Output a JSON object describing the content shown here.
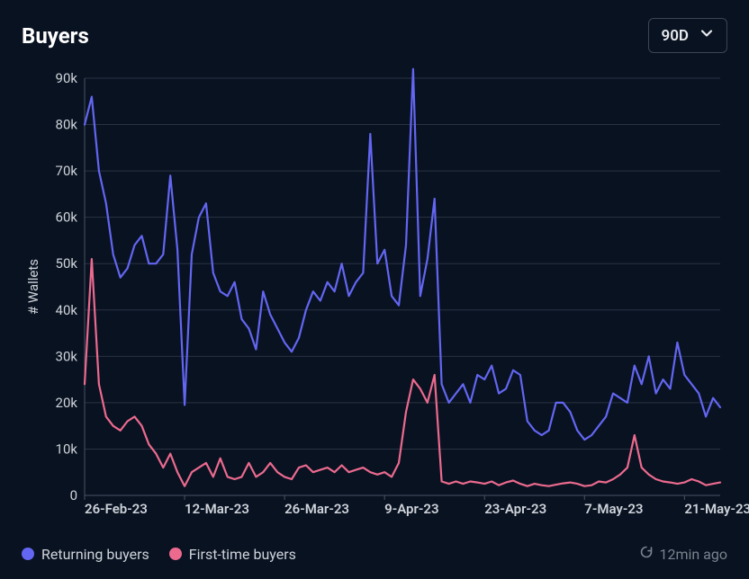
{
  "title": "Buyers",
  "range_selector": {
    "value": "90D"
  },
  "updated_label": "12min ago",
  "legend": {
    "returning": {
      "label": "Returning buyers",
      "color": "#6366f1"
    },
    "firsttime": {
      "label": "First-time buyers",
      "color": "#ec6a8e"
    }
  },
  "chart": {
    "type": "line",
    "background_color": "#081221",
    "grid_color": "#2a3342",
    "axis_color": "#4a5362",
    "text_color": "#cfd3da",
    "label_fontsize": 15,
    "tick_fontsize": 15,
    "ylabel": "# Wallets",
    "ylim": [
      0,
      90000
    ],
    "ytick_step": 10000,
    "yticks": [
      0,
      10000,
      20000,
      30000,
      40000,
      50000,
      60000,
      70000,
      80000,
      90000
    ],
    "ytick_labels": [
      "0",
      "10k",
      "20k",
      "30k",
      "40k",
      "50k",
      "60k",
      "70k",
      "80k",
      "90k"
    ],
    "x_count": 90,
    "xtick_indices": [
      0,
      14,
      28,
      42,
      56,
      70,
      84
    ],
    "xtick_labels": [
      "26-Feb-23",
      "12-Mar-23",
      "26-Mar-23",
      "9-Apr-23",
      "23-Apr-23",
      "7-May-23",
      "21-May-23"
    ],
    "line_width": 2.2,
    "series": {
      "returning": {
        "color": "#6366f1",
        "values": [
          80000,
          86000,
          70000,
          63000,
          52000,
          47000,
          49000,
          54000,
          56000,
          50000,
          50000,
          52000,
          69000,
          53000,
          19500,
          52000,
          60000,
          63000,
          48000,
          44000,
          43000,
          46000,
          38000,
          36000,
          31500,
          44000,
          39000,
          36000,
          33000,
          31000,
          34000,
          40000,
          44000,
          42000,
          46000,
          44000,
          50000,
          43000,
          46000,
          48000,
          78000,
          50000,
          53000,
          43000,
          41000,
          54000,
          92000,
          43000,
          51000,
          64000,
          24000,
          20000,
          22000,
          24000,
          20000,
          26000,
          25000,
          28000,
          22000,
          23000,
          27000,
          26000,
          16000,
          14000,
          13000,
          14000,
          20000,
          20000,
          18000,
          14000,
          12000,
          13000,
          15000,
          17000,
          22000,
          21000,
          20000,
          28000,
          24000,
          30000,
          22000,
          25000,
          23000,
          33000,
          26000,
          24000,
          22000,
          17000,
          21000,
          19000
        ]
      },
      "firsttime": {
        "color": "#ec6a8e",
        "values": [
          24000,
          51000,
          24000,
          17000,
          15000,
          14000,
          16000,
          17000,
          15000,
          11000,
          9000,
          6000,
          9000,
          5000,
          2000,
          5000,
          6000,
          7000,
          4000,
          8000,
          4000,
          3500,
          4000,
          7000,
          4000,
          5000,
          7000,
          5000,
          4000,
          3500,
          6000,
          6500,
          5000,
          5500,
          6000,
          5000,
          6500,
          5000,
          5500,
          6000,
          5000,
          4500,
          5000,
          4000,
          7000,
          18000,
          25000,
          23000,
          20000,
          26000,
          3000,
          2500,
          3000,
          2500,
          3000,
          2800,
          2500,
          3000,
          2200,
          2800,
          3200,
          2500,
          2000,
          2500,
          2200,
          2000,
          2300,
          2600,
          2800,
          2500,
          2000,
          2200,
          3000,
          2800,
          3500,
          4500,
          6000,
          13000,
          6000,
          4500,
          3500,
          3000,
          2800,
          2500,
          2800,
          3500,
          3000,
          2200,
          2500,
          2800
        ]
      }
    }
  }
}
